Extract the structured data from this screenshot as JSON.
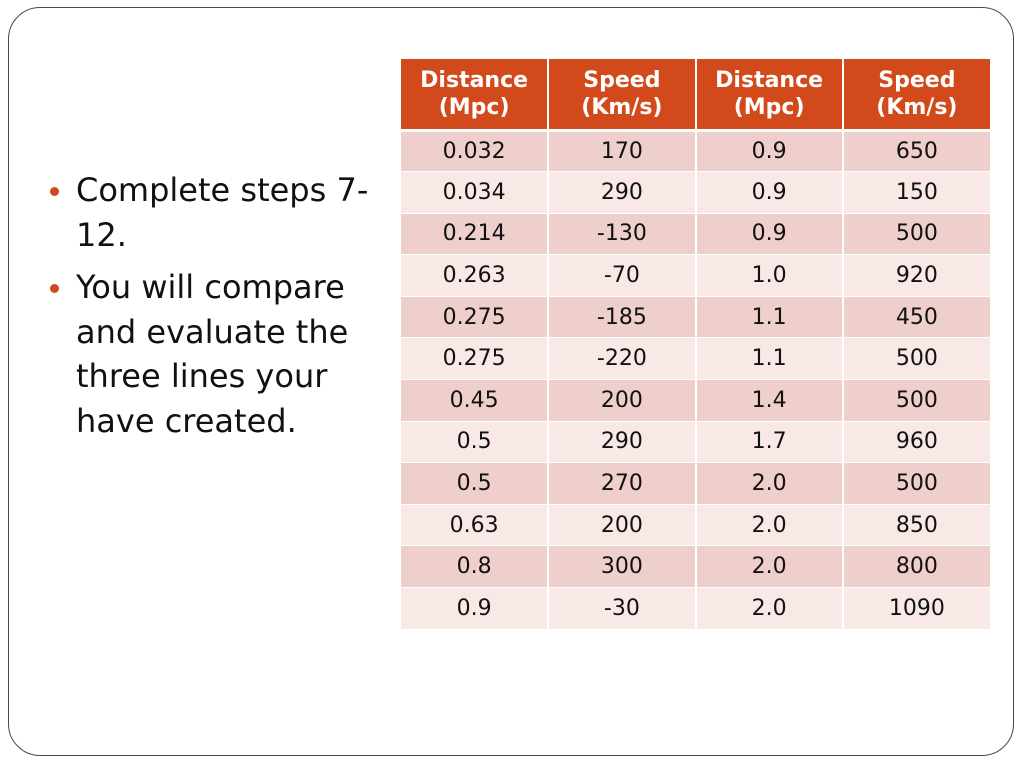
{
  "slide": {
    "bullets": [
      "Complete steps 7-12.",
      "You will compare  and evaluate the three lines your have created."
    ]
  },
  "table": {
    "headers": [
      [
        "Distance",
        "(Mpc)"
      ],
      [
        "Speed",
        "(Km/s)"
      ],
      [
        "Distance",
        "(Mpc)"
      ],
      [
        "Speed",
        "(Km/s)"
      ]
    ],
    "rows": [
      [
        "0.032",
        "170",
        "0.9",
        "650"
      ],
      [
        "0.034",
        "290",
        "0.9",
        "150"
      ],
      [
        "0.214",
        "-130",
        "0.9",
        "500"
      ],
      [
        "0.263",
        "-70",
        "1.0",
        "920"
      ],
      [
        "0.275",
        "-185",
        "1.1",
        "450"
      ],
      [
        "0.275",
        "-220",
        "1.1",
        "500"
      ],
      [
        "0.45",
        "200",
        "1.4",
        "500"
      ],
      [
        "0.5",
        "290",
        "1.7",
        "960"
      ],
      [
        "0.5",
        "270",
        "2.0",
        "500"
      ],
      [
        "0.63",
        "200",
        "2.0",
        "850"
      ],
      [
        "0.8",
        "300",
        "2.0",
        "800"
      ],
      [
        "0.9",
        "-30",
        "2.0",
        "1090"
      ]
    ]
  },
  "colors": {
    "accent": "#d24a1b",
    "row_dark": "#efcfcb",
    "row_light": "#f8e9e7",
    "frame": "#4a4a4a"
  }
}
